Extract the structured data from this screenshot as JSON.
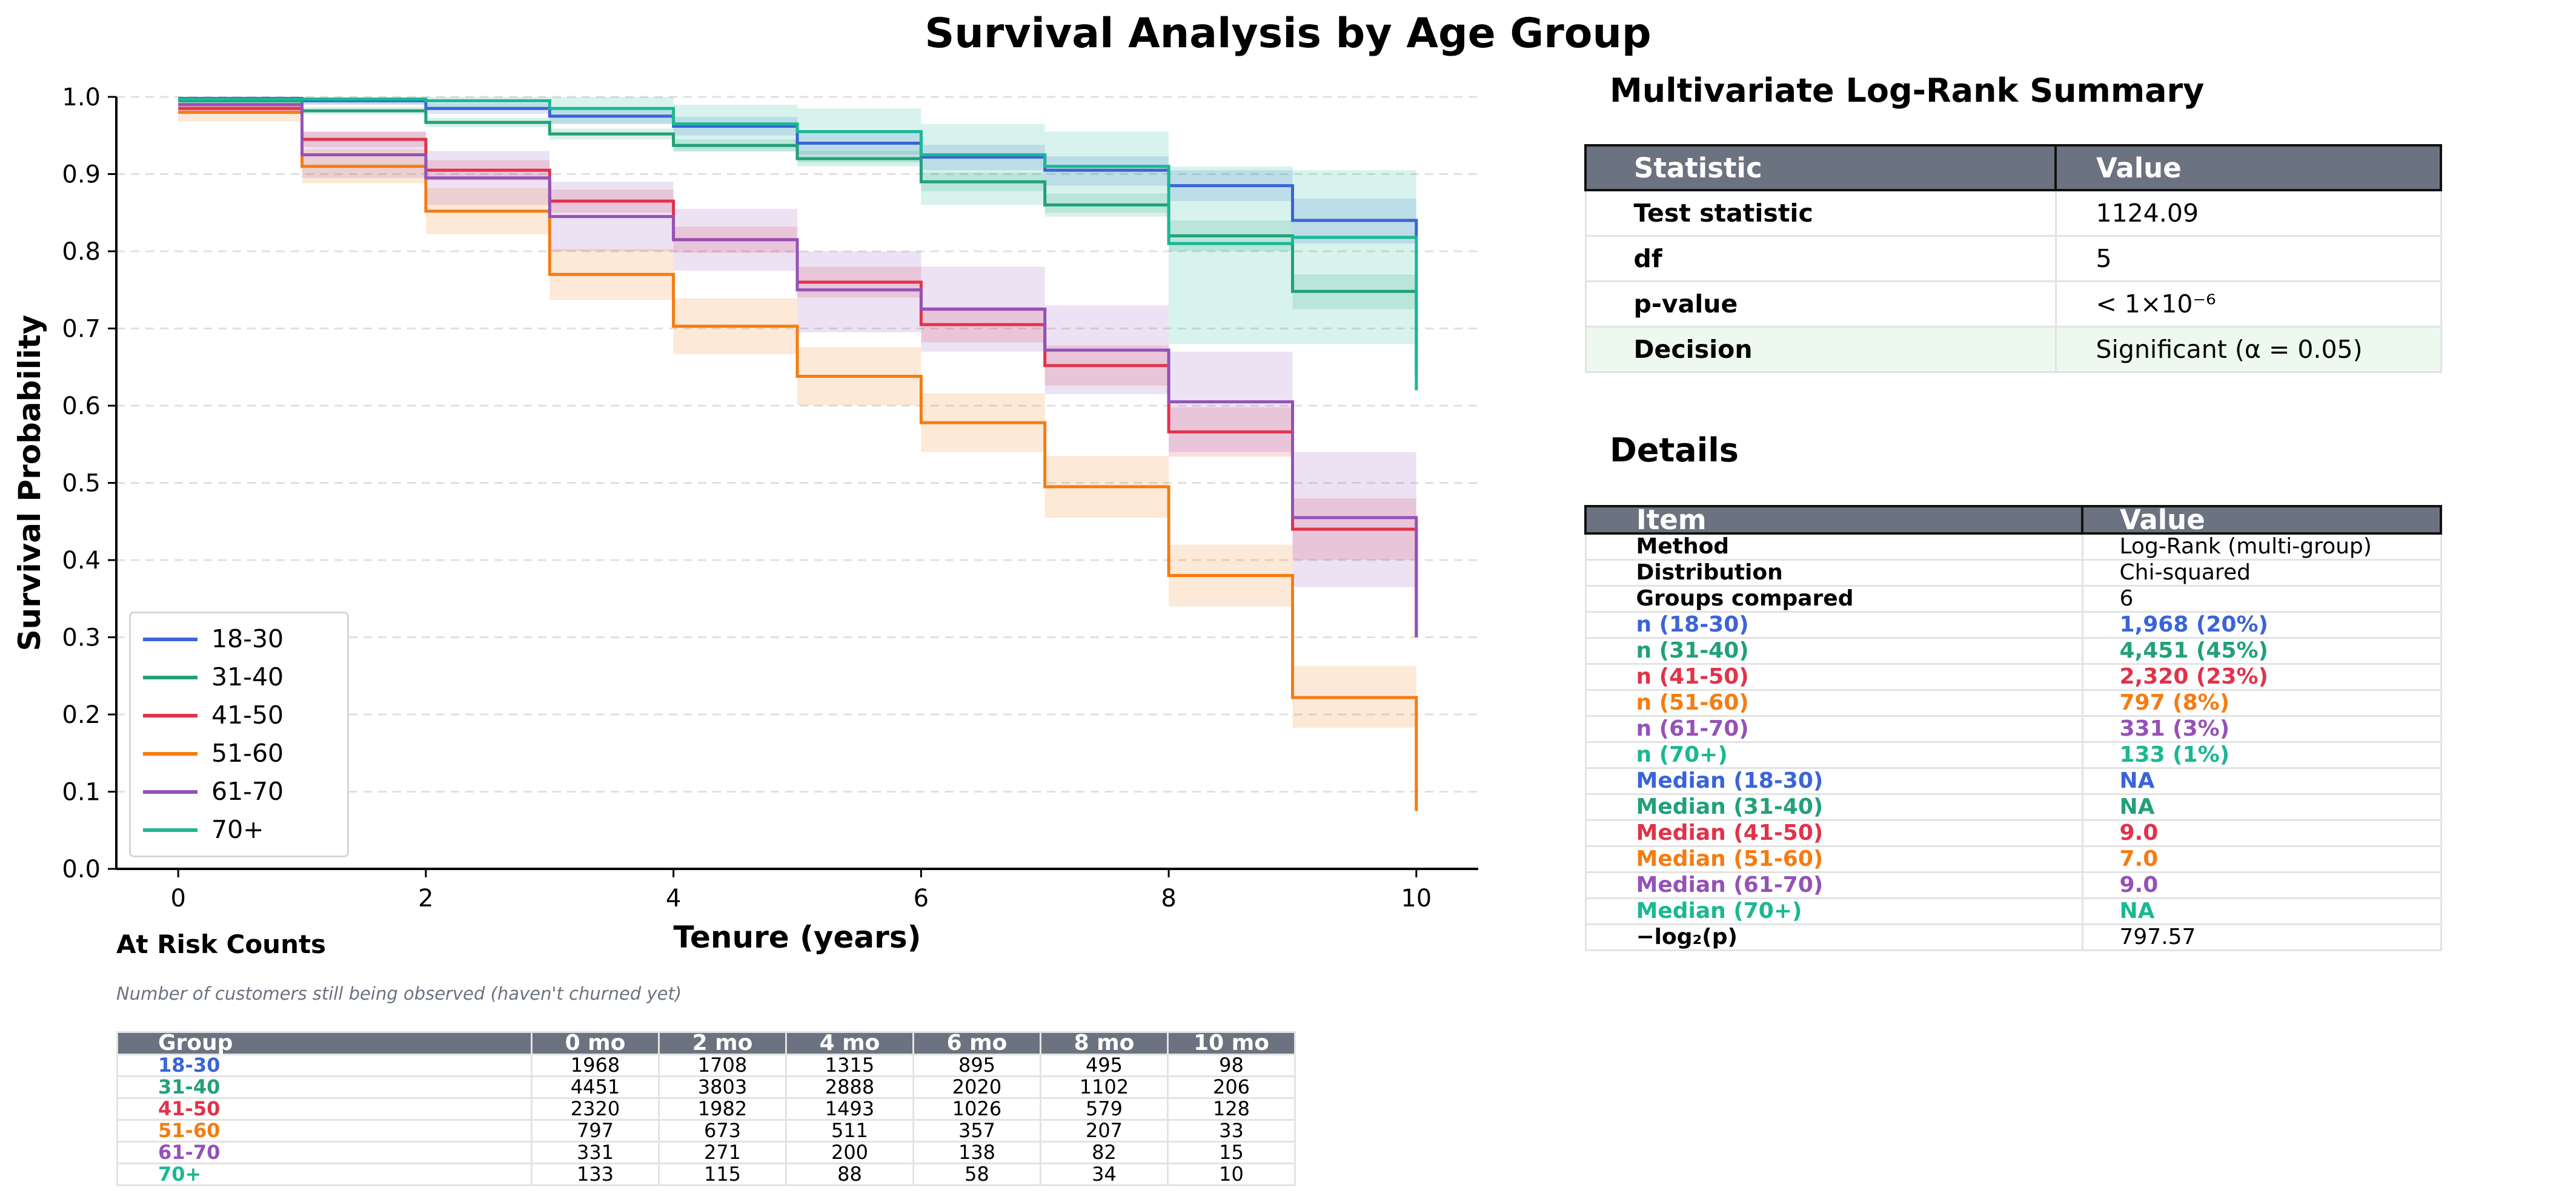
{
  "title": "Survival Analysis by Age Group",
  "colors": {
    "18-30": "#3a64d8",
    "31-40": "#22a07a",
    "41-50": "#e0334a",
    "51-60": "#f57c12",
    "61-70": "#9452b7",
    "70+": "#1ab893",
    "header_bg": "#6b7280",
    "significant_bg": "#edf9ef"
  },
  "chart_data": {
    "type": "line",
    "title": "Survival Analysis by Age Group",
    "xlabel": "Tenure (years)",
    "ylabel": "Survival Probability",
    "xlim": [
      -0.5,
      10.5
    ],
    "ylim": [
      0,
      1.0
    ],
    "x_ticks": [
      "0",
      "2",
      "4",
      "6",
      "8",
      "10"
    ],
    "y_ticks": [
      "0.0",
      "0.1",
      "0.2",
      "0.3",
      "0.4",
      "0.5",
      "0.6",
      "0.7",
      "0.8",
      "0.9",
      "1.0"
    ],
    "grid": "horizontal dashed",
    "legend": "bottom-left",
    "x": [
      0,
      1,
      2,
      3,
      4,
      5,
      6,
      7,
      8,
      9,
      10
    ],
    "series": [
      {
        "name": "18-30",
        "color": "#3a64d8",
        "values": [
          0.998,
          0.995,
          0.985,
          0.975,
          0.962,
          0.94,
          0.922,
          0.905,
          0.885,
          0.84,
          0.82
        ],
        "lower": [
          0.994,
          0.99,
          0.978,
          0.965,
          0.95,
          0.925,
          0.905,
          0.885,
          0.865,
          0.81,
          0.78
        ],
        "upper": [
          1.0,
          0.999,
          0.992,
          0.984,
          0.974,
          0.955,
          0.938,
          0.923,
          0.905,
          0.868,
          0.86
        ]
      },
      {
        "name": "31-40",
        "color": "#22a07a",
        "values": [
          0.995,
          0.982,
          0.967,
          0.952,
          0.937,
          0.92,
          0.89,
          0.86,
          0.82,
          0.748,
          0.64
        ],
        "lower": [
          0.991,
          0.977,
          0.961,
          0.945,
          0.929,
          0.91,
          0.878,
          0.845,
          0.8,
          0.725,
          0.6
        ],
        "upper": [
          0.999,
          0.987,
          0.973,
          0.959,
          0.945,
          0.93,
          0.902,
          0.875,
          0.84,
          0.77,
          0.68
        ]
      },
      {
        "name": "41-50",
        "color": "#e0334a",
        "values": [
          0.985,
          0.945,
          0.905,
          0.865,
          0.815,
          0.76,
          0.705,
          0.652,
          0.566,
          0.44,
          0.3
        ],
        "lower": [
          0.979,
          0.935,
          0.892,
          0.85,
          0.798,
          0.74,
          0.682,
          0.626,
          0.534,
          0.4,
          0.26
        ],
        "upper": [
          0.991,
          0.955,
          0.918,
          0.88,
          0.832,
          0.78,
          0.728,
          0.678,
          0.598,
          0.48,
          0.34
        ]
      },
      {
        "name": "51-60",
        "color": "#f57c12",
        "values": [
          0.98,
          0.91,
          0.852,
          0.77,
          0.703,
          0.638,
          0.578,
          0.495,
          0.38,
          0.222,
          0.075
        ],
        "lower": [
          0.968,
          0.888,
          0.822,
          0.737,
          0.667,
          0.6,
          0.54,
          0.455,
          0.34,
          0.183,
          0.04
        ],
        "upper": [
          0.992,
          0.932,
          0.882,
          0.803,
          0.739,
          0.676,
          0.616,
          0.535,
          0.42,
          0.263,
          0.11
        ]
      },
      {
        "name": "61-70",
        "color": "#9452b7",
        "values": [
          0.99,
          0.925,
          0.895,
          0.845,
          0.815,
          0.75,
          0.725,
          0.672,
          0.605,
          0.455,
          0.3
        ],
        "lower": [
          0.978,
          0.895,
          0.86,
          0.8,
          0.775,
          0.695,
          0.67,
          0.615,
          0.54,
          0.365,
          0.22
        ],
        "upper": [
          1.0,
          0.955,
          0.93,
          0.89,
          0.855,
          0.8,
          0.78,
          0.73,
          0.67,
          0.54,
          0.38
        ]
      },
      {
        "name": "70+",
        "color": "#1ab893",
        "values": [
          0.997,
          0.997,
          0.995,
          0.985,
          0.965,
          0.955,
          0.925,
          0.91,
          0.81,
          0.818,
          0.62
        ],
        "lower": [
          0.99,
          0.99,
          0.985,
          0.965,
          0.93,
          0.915,
          0.86,
          0.85,
          0.68,
          0.68,
          0.5
        ],
        "upper": [
          1.0,
          1.0,
          1.0,
          1.0,
          0.99,
          0.985,
          0.965,
          0.955,
          0.91,
          0.905,
          0.75
        ]
      }
    ]
  },
  "summary": {
    "title": "Multivariate Log-Rank Summary",
    "headers": [
      "Statistic",
      "Value"
    ],
    "rows": [
      {
        "label": "Test statistic",
        "value": "1124.09"
      },
      {
        "label": "df",
        "value": "5"
      },
      {
        "label": "p-value",
        "value": "< 1×10⁻⁶"
      },
      {
        "label": "Decision",
        "value": "Significant (α = 0.05)"
      }
    ]
  },
  "details": {
    "title": "Details",
    "headers": [
      "Item",
      "Value"
    ],
    "rows": [
      {
        "label": "Method",
        "value": "Log-Rank (multi-group)",
        "color": ""
      },
      {
        "label": "Distribution",
        "value": "Chi-squared",
        "color": ""
      },
      {
        "label": "Groups compared",
        "value": "6",
        "color": ""
      },
      {
        "label": "n (18-30)",
        "value": "1,968 (20%)",
        "color": "#3a64d8"
      },
      {
        "label": "n (31-40)",
        "value": "4,451 (45%)",
        "color": "#22a07a"
      },
      {
        "label": "n (41-50)",
        "value": "2,320 (23%)",
        "color": "#e0334a"
      },
      {
        "label": "n (51-60)",
        "value": "797 (8%)",
        "color": "#f57c12"
      },
      {
        "label": "n (61-70)",
        "value": "331 (3%)",
        "color": "#9452b7"
      },
      {
        "label": "n (70+)",
        "value": "133 (1%)",
        "color": "#1ab893"
      },
      {
        "label": "Median (18-30)",
        "value": "NA",
        "color": "#3a64d8"
      },
      {
        "label": "Median (31-40)",
        "value": "NA",
        "color": "#22a07a"
      },
      {
        "label": "Median (41-50)",
        "value": "9.0",
        "color": "#e0334a"
      },
      {
        "label": "Median (51-60)",
        "value": "7.0",
        "color": "#f57c12"
      },
      {
        "label": "Median (61-70)",
        "value": "9.0",
        "color": "#9452b7"
      },
      {
        "label": "Median (70+)",
        "value": "NA",
        "color": "#1ab893"
      },
      {
        "label": "−log₂(p)",
        "value": "797.57",
        "color": ""
      }
    ]
  },
  "at_risk": {
    "title": "At Risk Counts",
    "subtitle": "Number of customers still being observed (haven't churned yet)",
    "headers": [
      "Group",
      "0 mo",
      "2 mo",
      "4 mo",
      "6 mo",
      "8 mo",
      "10 mo"
    ],
    "rows": [
      {
        "group": "18-30",
        "color": "#3a64d8",
        "counts": [
          "1968",
          "1708",
          "1315",
          "895",
          "495",
          "98"
        ]
      },
      {
        "group": "31-40",
        "color": "#22a07a",
        "counts": [
          "4451",
          "3803",
          "2888",
          "2020",
          "1102",
          "206"
        ]
      },
      {
        "group": "41-50",
        "color": "#e0334a",
        "counts": [
          "2320",
          "1982",
          "1493",
          "1026",
          "579",
          "128"
        ]
      },
      {
        "group": "51-60",
        "color": "#f57c12",
        "counts": [
          "797",
          "673",
          "511",
          "357",
          "207",
          "33"
        ]
      },
      {
        "group": "61-70",
        "color": "#9452b7",
        "counts": [
          "331",
          "271",
          "200",
          "138",
          "82",
          "15"
        ]
      },
      {
        "group": "70+",
        "color": "#1ab893",
        "counts": [
          "133",
          "115",
          "88",
          "58",
          "34",
          "10"
        ]
      }
    ]
  }
}
